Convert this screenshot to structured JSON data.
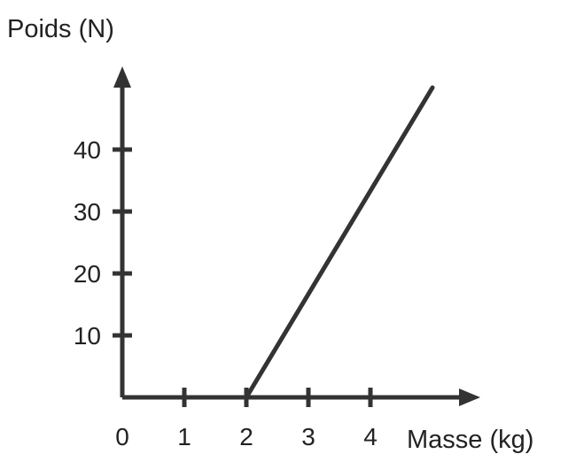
{
  "chart_data": {
    "type": "line",
    "title": "",
    "xlabel": "Masse (kg)",
    "ylabel": "Poids (N)",
    "xlim": [
      0,
      5
    ],
    "ylim": [
      0,
      50
    ],
    "x_ticks": [
      0,
      1,
      2,
      3,
      4
    ],
    "y_ticks": [
      10,
      20,
      30,
      40
    ],
    "series": [
      {
        "x": [
          2,
          5
        ],
        "y": [
          0,
          50
        ]
      }
    ],
    "grid": false,
    "legend": "none",
    "line_color": "#333333"
  }
}
